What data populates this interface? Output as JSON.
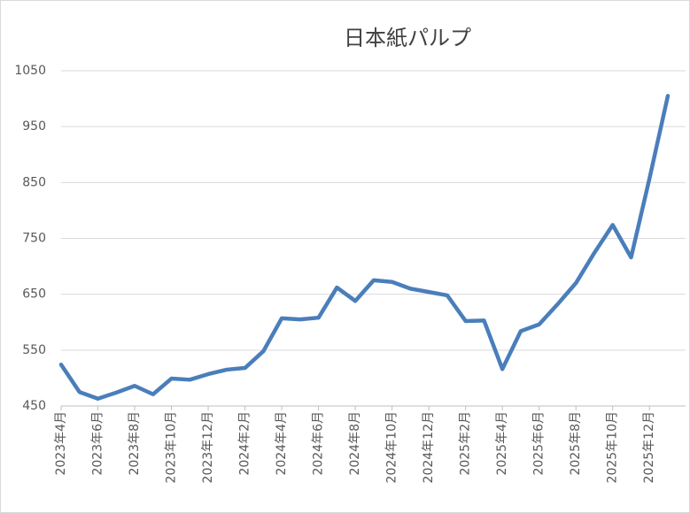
{
  "chart_data": {
    "type": "line",
    "title": "日本紙パルプ",
    "categories": [
      "2023年4月",
      null,
      "2023年6月",
      null,
      "2023年8月",
      null,
      "2023年10月",
      null,
      "2023年12月",
      null,
      "2024年2月",
      null,
      "2024年4月",
      null,
      "2024年6月",
      null,
      "2024年8月",
      null,
      "2024年10月",
      null,
      "2024年12月",
      null,
      "2025年2月",
      null,
      "2025年4月",
      null,
      "2025年6月",
      null,
      "2025年8月",
      null,
      "2025年10月",
      null,
      "2025年12月",
      null
    ],
    "values": [
      524,
      475,
      463,
      474,
      486,
      471,
      499,
      497,
      507,
      515,
      518,
      548,
      607,
      605,
      608,
      662,
      638,
      675,
      672,
      660,
      654,
      648,
      602,
      603,
      516,
      584,
      596,
      632,
      670,
      724,
      774,
      716,
      857,
      1005
    ],
    "color": "#4a7ebb",
    "ylim": [
      450,
      1050
    ],
    "yticks": [
      450,
      550,
      650,
      750,
      850,
      950,
      1050
    ],
    "grid": true
  }
}
